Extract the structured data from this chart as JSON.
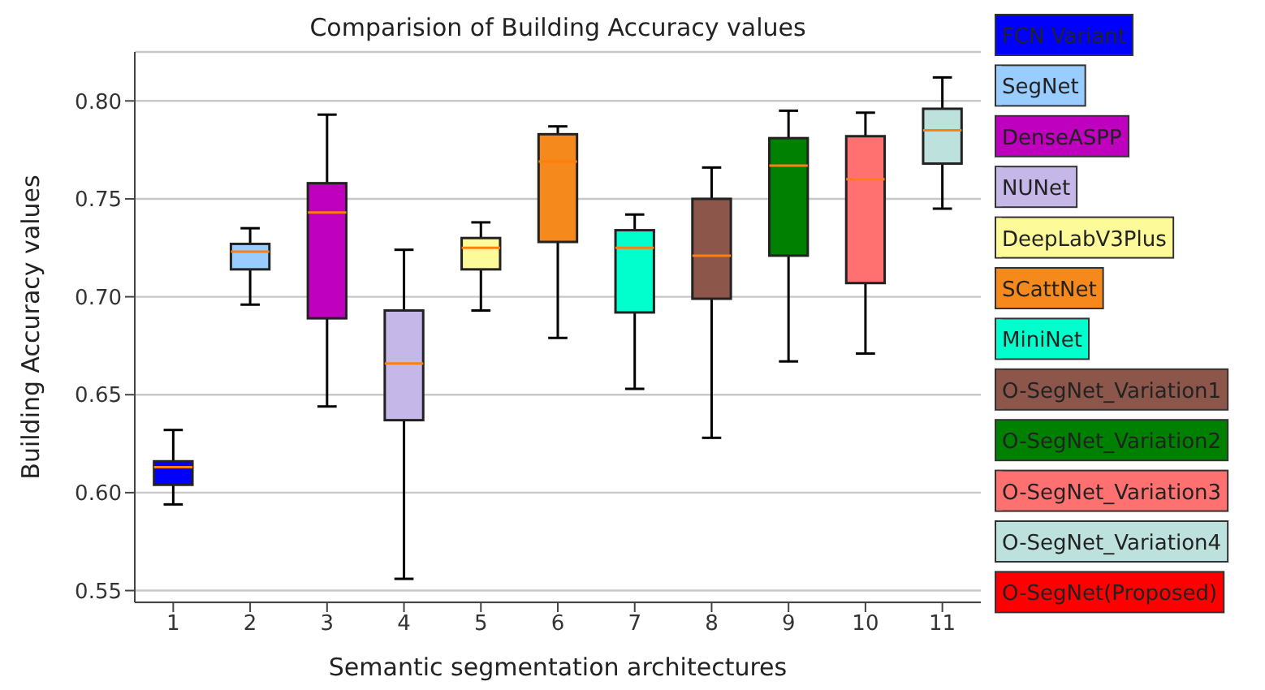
{
  "chart_data": {
    "type": "box",
    "title": "Comparision of Building Accuracy values",
    "xlabel": "Semantic segmentation architectures",
    "ylabel": "Building Accuracy values",
    "categories": [
      "1",
      "2",
      "3",
      "4",
      "5",
      "6",
      "7",
      "8",
      "9",
      "10",
      "11"
    ],
    "ylim": [
      0.544,
      0.825
    ],
    "yticks": [
      {
        "value": 0.55,
        "label": "0.55"
      },
      {
        "value": 0.6,
        "label": "0.60"
      },
      {
        "value": 0.65,
        "label": "0.65"
      },
      {
        "value": 0.7,
        "label": "0.70"
      },
      {
        "value": 0.75,
        "label": "0.75"
      },
      {
        "value": 0.8,
        "label": "0.80"
      }
    ],
    "grid": "y",
    "legend": "right",
    "series": [
      {
        "name": "FCN Variant",
        "color": "#0000ff",
        "boxes": [
          {
            "low": 0.594,
            "q1": 0.604,
            "median": 0.613,
            "q3": 0.616,
            "high": 0.632
          },
          null,
          null,
          null,
          null,
          null,
          null,
          null,
          null,
          null,
          null
        ]
      },
      {
        "name": "SegNet",
        "color": "#99ccff",
        "boxes": [
          null,
          {
            "low": 0.696,
            "q1": 0.714,
            "median": 0.723,
            "q3": 0.727,
            "high": 0.735
          },
          null,
          null,
          null,
          null,
          null,
          null,
          null,
          null,
          null
        ]
      },
      {
        "name": "DenseASPP",
        "color": "#bf00bf",
        "boxes": [
          null,
          null,
          {
            "low": 0.644,
            "q1": 0.689,
            "median": 0.743,
            "q3": 0.758,
            "high": 0.793
          },
          null,
          null,
          null,
          null,
          null,
          null,
          null,
          null
        ]
      },
      {
        "name": "NUNet",
        "color": "#c5b8e8",
        "boxes": [
          null,
          null,
          null,
          {
            "low": 0.556,
            "q1": 0.637,
            "median": 0.666,
            "q3": 0.693,
            "high": 0.724
          },
          null,
          null,
          null,
          null,
          null,
          null,
          null
        ]
      },
      {
        "name": "DeepLabV3Plus",
        "color": "#fdfa99",
        "boxes": [
          null,
          null,
          null,
          null,
          {
            "low": 0.693,
            "q1": 0.714,
            "median": 0.725,
            "q3": 0.73,
            "high": 0.738
          },
          null,
          null,
          null,
          null,
          null,
          null
        ]
      },
      {
        "name": "SCattNet",
        "color": "#f5891b",
        "boxes": [
          null,
          null,
          null,
          null,
          null,
          {
            "low": 0.679,
            "q1": 0.728,
            "median": 0.769,
            "q3": 0.783,
            "high": 0.787
          },
          null,
          null,
          null,
          null,
          null
        ]
      },
      {
        "name": "MiniNet",
        "color": "#00ffcc",
        "boxes": [
          null,
          null,
          null,
          null,
          null,
          null,
          {
            "low": 0.653,
            "q1": 0.692,
            "median": 0.725,
            "q3": 0.734,
            "high": 0.742
          },
          null,
          null,
          null,
          null
        ]
      },
      {
        "name": "O-SegNet_Variation1",
        "color": "#8c564b",
        "boxes": [
          null,
          null,
          null,
          null,
          null,
          null,
          null,
          {
            "low": 0.628,
            "q1": 0.699,
            "median": 0.721,
            "q3": 0.75,
            "high": 0.766
          },
          null,
          null,
          null
        ]
      },
      {
        "name": "O-SegNet_Variation2",
        "color": "#008000",
        "boxes": [
          null,
          null,
          null,
          null,
          null,
          null,
          null,
          null,
          {
            "low": 0.667,
            "q1": 0.721,
            "median": 0.767,
            "q3": 0.781,
            "high": 0.795
          },
          null,
          null
        ]
      },
      {
        "name": "O-SegNet_Variation3",
        "color": "#ff7070",
        "boxes": [
          null,
          null,
          null,
          null,
          null,
          null,
          null,
          null,
          null,
          {
            "low": 0.671,
            "q1": 0.707,
            "median": 0.76,
            "q3": 0.782,
            "high": 0.794
          },
          null
        ]
      },
      {
        "name": "O-SegNet_Variation4",
        "color": "#bde2dd",
        "boxes": [
          null,
          null,
          null,
          null,
          null,
          null,
          null,
          null,
          null,
          null,
          {
            "low": 0.745,
            "q1": 0.768,
            "median": 0.785,
            "q3": 0.796,
            "high": 0.812
          }
        ]
      },
      {
        "name": "O-SegNet(Proposed)",
        "color": "#ff0000",
        "boxes": [
          null,
          null,
          null,
          null,
          null,
          null,
          null,
          null,
          null,
          null,
          null
        ]
      }
    ]
  }
}
